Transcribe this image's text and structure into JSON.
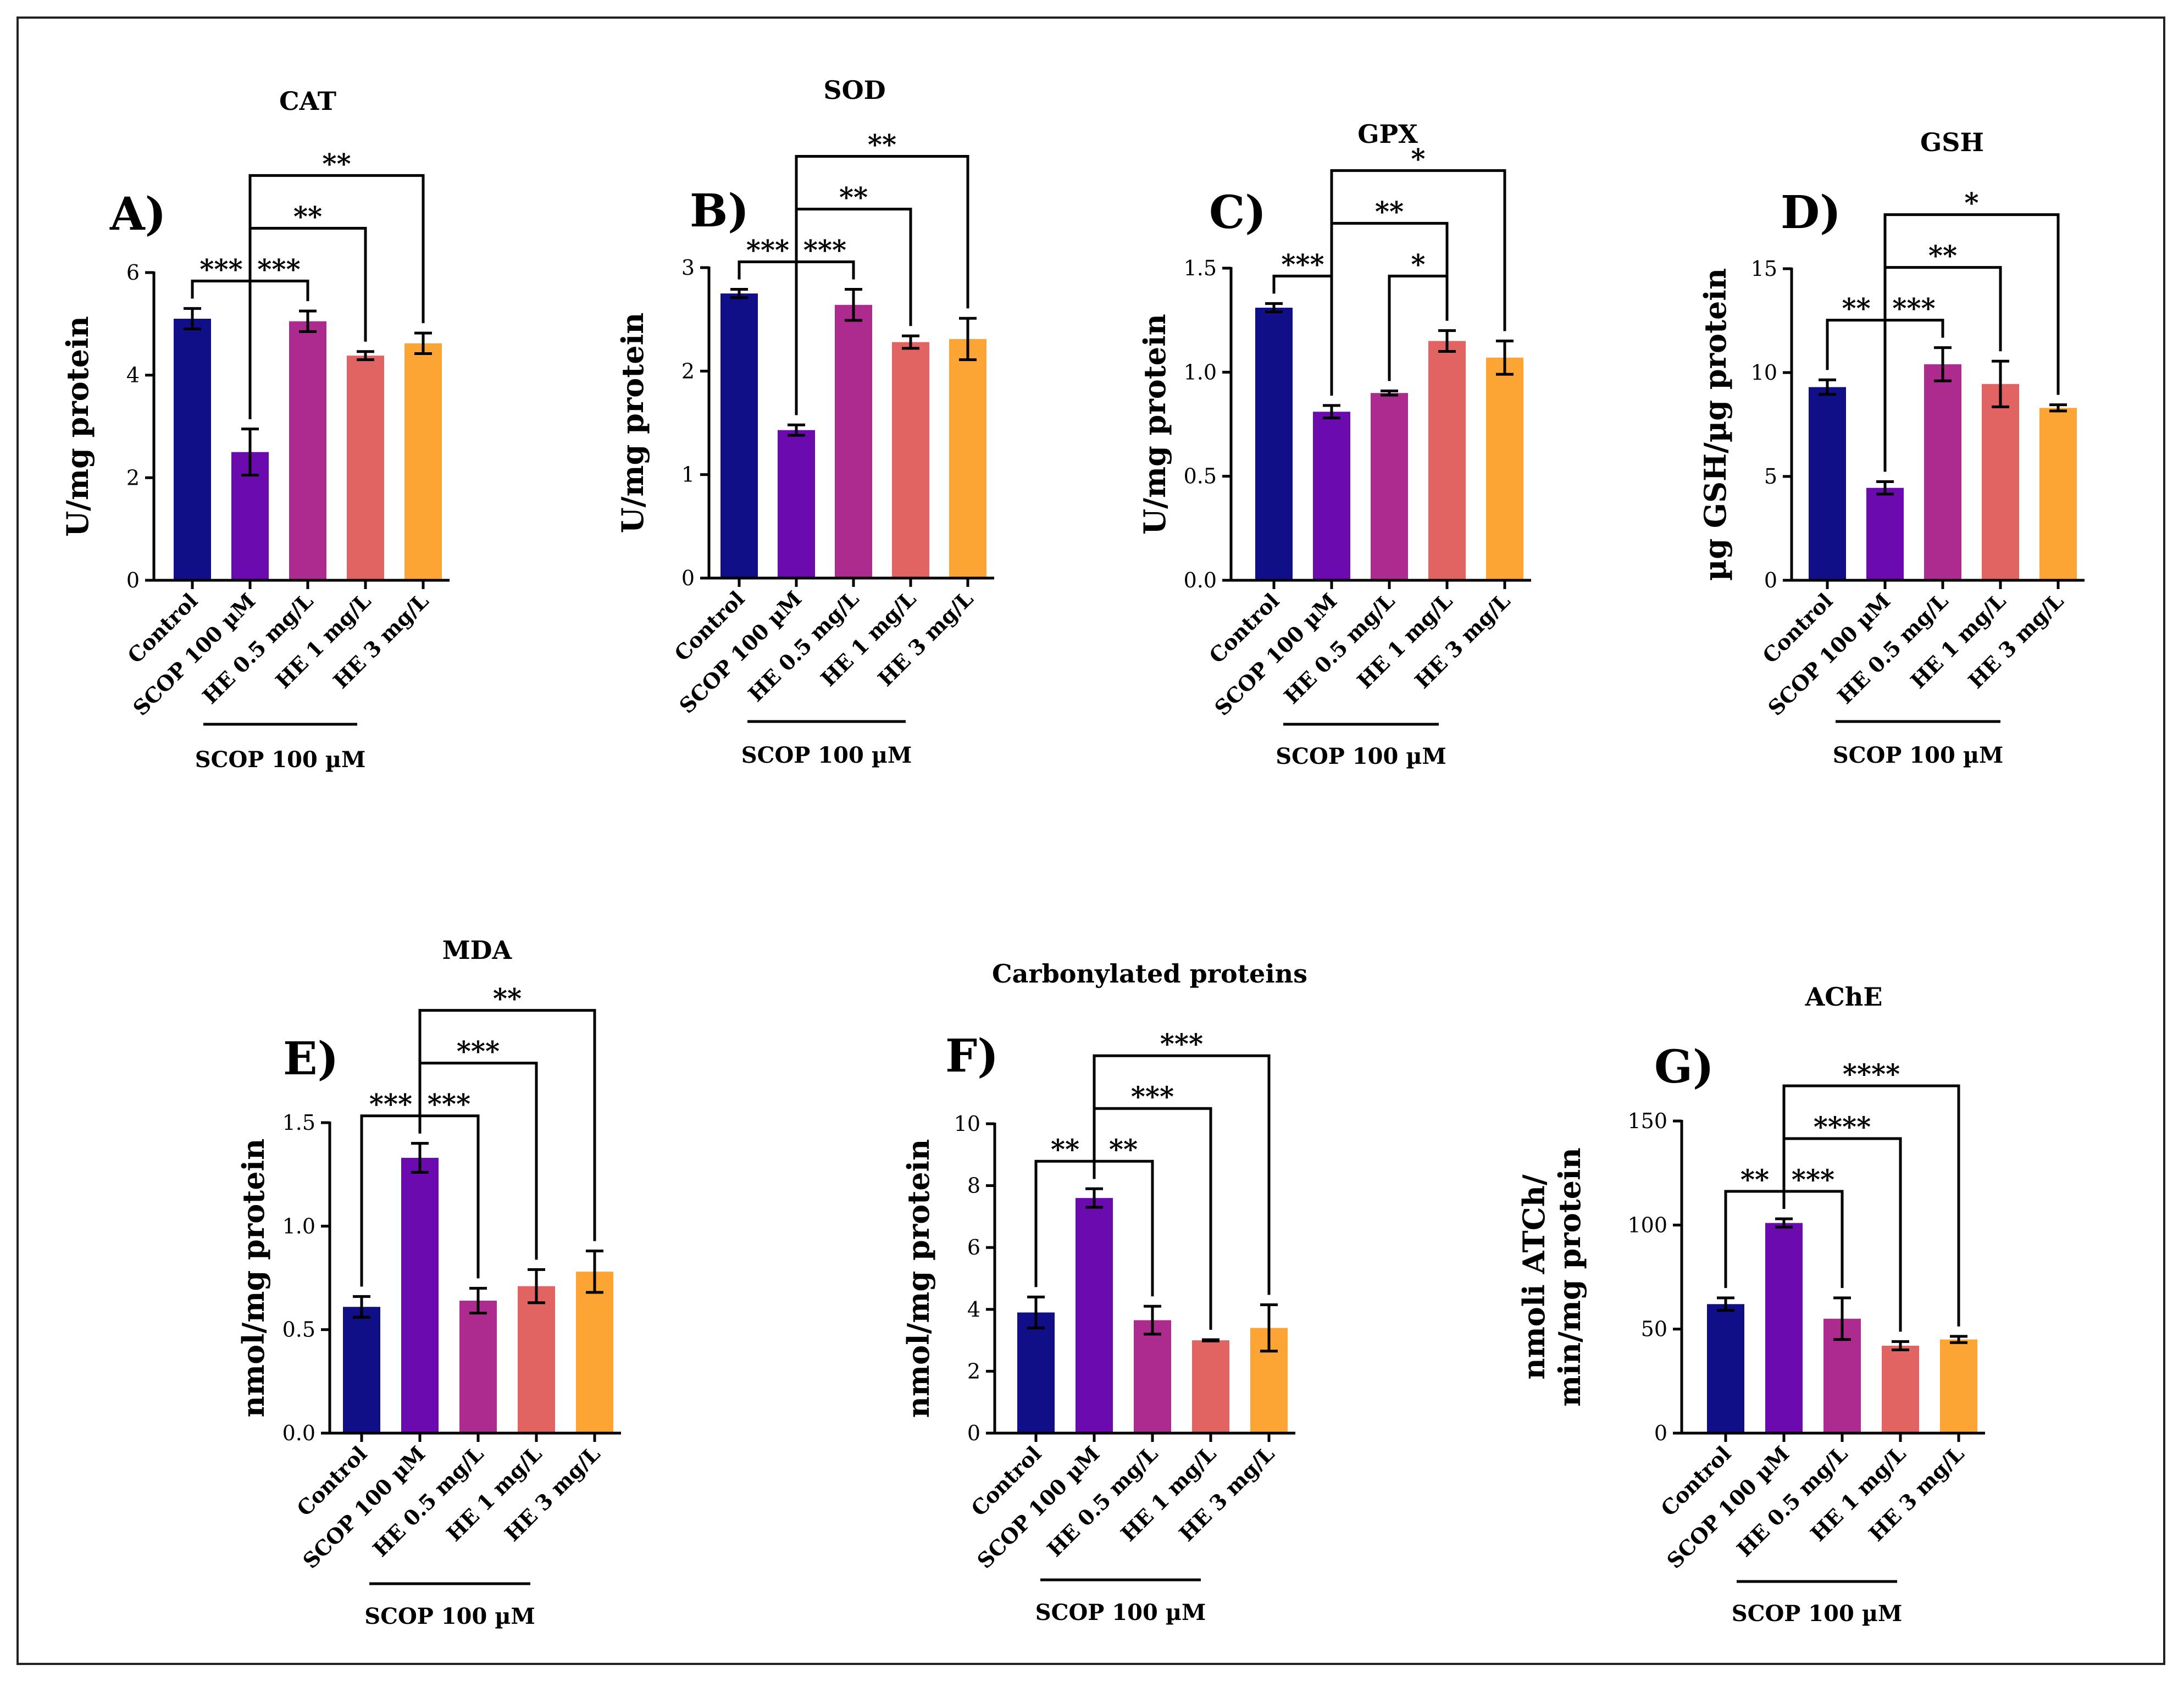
{
  "figure": {
    "categories": [
      "Control",
      "SCOP 100 µM",
      "HE 0.5 mg/L",
      "HE 1 mg/L",
      "HE 3 mg/L"
    ],
    "colors": [
      "#100F88",
      "#6B0AAE",
      "#AD2B8F",
      "#E16463",
      "#FCA434"
    ],
    "group_label": "SCOP 100 µM"
  },
  "chart_data": [
    {
      "panel": "A)",
      "type": "bar",
      "title": "CAT",
      "ylabel": "U/mg protein",
      "categories": [
        "Control",
        "SCOP 100 µM",
        "HE 0.5 mg/L",
        "HE 1 mg/L",
        "HE 3 mg/L"
      ],
      "values": [
        5.1,
        2.5,
        5.05,
        4.38,
        4.62
      ],
      "errors": [
        0.2,
        0.45,
        0.2,
        0.08,
        0.2
      ],
      "ylim": [
        0,
        6
      ],
      "yticks": [
        "0",
        "2",
        "4",
        "6"
      ],
      "ytick_values": [
        0,
        2,
        4,
        6
      ],
      "comparisons": [
        {
          "from": 0,
          "to": 1,
          "label": "***",
          "level": 1
        },
        {
          "from": 1,
          "to": 2,
          "label": "***",
          "level": 1
        },
        {
          "from": 1,
          "to": 3,
          "label": "**",
          "level": 2
        },
        {
          "from": 1,
          "to": 4,
          "label": "**",
          "level": 3
        }
      ]
    },
    {
      "panel": "B)",
      "type": "bar",
      "title": "SOD",
      "ylabel": "U/mg protein",
      "categories": [
        "Control",
        "SCOP 100 µM",
        "HE 0.5 mg/L",
        "HE 1 mg/L",
        "HE 3 mg/L"
      ],
      "values": [
        2.75,
        1.43,
        2.64,
        2.28,
        2.31
      ],
      "errors": [
        0.04,
        0.05,
        0.15,
        0.06,
        0.2
      ],
      "ylim": [
        0,
        3
      ],
      "yticks": [
        "0",
        "1",
        "2",
        "3"
      ],
      "ytick_values": [
        0,
        1,
        2,
        3
      ],
      "comparisons": [
        {
          "from": 0,
          "to": 1,
          "label": "***",
          "level": 1
        },
        {
          "from": 1,
          "to": 2,
          "label": "***",
          "level": 1
        },
        {
          "from": 1,
          "to": 3,
          "label": "**",
          "level": 2
        },
        {
          "from": 1,
          "to": 4,
          "label": "**",
          "level": 3
        }
      ]
    },
    {
      "panel": "C)",
      "type": "bar",
      "title": "GPX",
      "ylabel": "U/mg protein",
      "categories": [
        "Control",
        "SCOP 100 µM",
        "HE 0.5 mg/L",
        "HE 1 mg/L",
        "HE 3 mg/L"
      ],
      "values": [
        1.31,
        0.81,
        0.9,
        1.15,
        1.07
      ],
      "errors": [
        0.02,
        0.03,
        0.01,
        0.05,
        0.08
      ],
      "ylim": [
        0,
        1.5
      ],
      "yticks": [
        "0.0",
        "0.5",
        "1.0",
        "1.5"
      ],
      "ytick_values": [
        0,
        0.5,
        1.0,
        1.5
      ],
      "comparisons": [
        {
          "from": 0,
          "to": 1,
          "label": "***",
          "level": 1
        },
        {
          "from": 2,
          "to": 3,
          "label": "*",
          "level": 1
        },
        {
          "from": 1,
          "to": 3,
          "label": "**",
          "level": 2
        },
        {
          "from": 1,
          "to": 4,
          "label": "*",
          "level": 3
        }
      ]
    },
    {
      "panel": "D)",
      "type": "bar",
      "title": "GSH",
      "ylabel": "µg GSH/µg protein",
      "categories": [
        "Control",
        "SCOP 100 µM",
        "HE 0.5 mg/L",
        "HE 1 mg/L",
        "HE 3 mg/L"
      ],
      "values": [
        9.3,
        4.45,
        10.4,
        9.45,
        8.3
      ],
      "errors": [
        0.35,
        0.3,
        0.8,
        1.1,
        0.15
      ],
      "ylim": [
        0,
        15
      ],
      "yticks": [
        "0",
        "5",
        "10",
        "15"
      ],
      "ytick_values": [
        0,
        5,
        10,
        15
      ],
      "comparisons": [
        {
          "from": 0,
          "to": 1,
          "label": "**",
          "level": 1
        },
        {
          "from": 1,
          "to": 2,
          "label": "***",
          "level": 1
        },
        {
          "from": 1,
          "to": 3,
          "label": "**",
          "level": 2
        },
        {
          "from": 1,
          "to": 4,
          "label": "*",
          "level": 3
        }
      ]
    },
    {
      "panel": "E)",
      "type": "bar",
      "title": "MDA",
      "ylabel": "nmol/mg protein",
      "categories": [
        "Control",
        "SCOP 100 µM",
        "HE 0.5 mg/L",
        "HE 1 mg/L",
        "HE 3 mg/L"
      ],
      "values": [
        0.61,
        1.33,
        0.64,
        0.71,
        0.78
      ],
      "errors": [
        0.05,
        0.07,
        0.06,
        0.08,
        0.1
      ],
      "ylim": [
        0,
        1.5
      ],
      "yticks": [
        "0.0",
        "0.5",
        "1.0",
        "1.5"
      ],
      "ytick_values": [
        0,
        0.5,
        1.0,
        1.5
      ],
      "comparisons": [
        {
          "from": 0,
          "to": 1,
          "label": "***",
          "level": 1
        },
        {
          "from": 1,
          "to": 2,
          "label": "***",
          "level": 1
        },
        {
          "from": 1,
          "to": 3,
          "label": "***",
          "level": 2
        },
        {
          "from": 1,
          "to": 4,
          "label": "**",
          "level": 3
        }
      ]
    },
    {
      "panel": "F)",
      "type": "bar",
      "title": "Carbonylated proteins",
      "ylabel": "nmol/mg protein",
      "categories": [
        "Control",
        "SCOP 100 µM",
        "HE 0.5 mg/L",
        "HE 1 mg/L",
        "HE 3 mg/L"
      ],
      "values": [
        3.9,
        7.6,
        3.65,
        3.0,
        3.4
      ],
      "errors": [
        0.5,
        0.3,
        0.45,
        0.02,
        0.75
      ],
      "ylim": [
        0,
        10
      ],
      "yticks": [
        "0",
        "2",
        "4",
        "6",
        "8",
        "10"
      ],
      "ytick_values": [
        0,
        2,
        4,
        6,
        8,
        10
      ],
      "comparisons": [
        {
          "from": 0,
          "to": 1,
          "label": "**",
          "level": 1
        },
        {
          "from": 1,
          "to": 2,
          "label": "**",
          "level": 1
        },
        {
          "from": 1,
          "to": 3,
          "label": "***",
          "level": 2
        },
        {
          "from": 1,
          "to": 4,
          "label": "***",
          "level": 3
        }
      ]
    },
    {
      "panel": "G)",
      "type": "bar",
      "title": "AChE",
      "ylabel": [
        "nmoli ATCh/",
        "min/mg protein"
      ],
      "categories": [
        "Control",
        "SCOP 100 µM",
        "HE 0.5 mg/L",
        "HE 1 mg/L",
        "HE 3 mg/L"
      ],
      "values": [
        62,
        101,
        55,
        42,
        45
      ],
      "errors": [
        3,
        2,
        10,
        2,
        1.5
      ],
      "ylim": [
        0,
        150
      ],
      "yticks": [
        "0",
        "50",
        "100",
        "150"
      ],
      "ytick_values": [
        0,
        50,
        100,
        150
      ],
      "comparisons": [
        {
          "from": 0,
          "to": 1,
          "label": "**",
          "level": 1
        },
        {
          "from": 1,
          "to": 2,
          "label": "***",
          "level": 1
        },
        {
          "from": 1,
          "to": 3,
          "label": "****",
          "level": 2
        },
        {
          "from": 1,
          "to": 4,
          "label": "****",
          "level": 3
        }
      ]
    }
  ]
}
